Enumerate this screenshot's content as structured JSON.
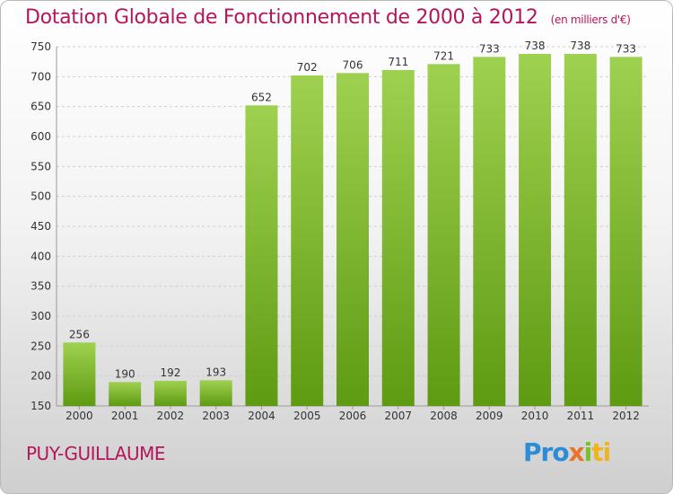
{
  "title": "Dotation Globale de Fonctionnement de 2000 à 2012",
  "unit_note": "(en milliers d'€)",
  "commune": "PUY-GUILLAUME",
  "logo": {
    "text": "Proxiti",
    "parts": [
      "Pro",
      "x",
      "i",
      "ti"
    ]
  },
  "colors": {
    "title": "#b5155b",
    "bar_top": "#9fd150",
    "bar_bottom": "#5e9a12",
    "grid": "#cfcfcf"
  },
  "chart_data": {
    "type": "bar",
    "title": "Dotation Globale de Fonctionnement de 2000 à 2012",
    "subtitle": "(en milliers d'€)",
    "xlabel": "",
    "ylabel": "",
    "categories": [
      "2000",
      "2001",
      "2002",
      "2003",
      "2004",
      "2005",
      "2006",
      "2007",
      "2008",
      "2009",
      "2010",
      "2011",
      "2012"
    ],
    "values": [
      256,
      190,
      192,
      193,
      652,
      702,
      706,
      711,
      721,
      733,
      738,
      738,
      733
    ],
    "ylim": [
      150,
      750
    ],
    "yticks": [
      150,
      200,
      250,
      300,
      350,
      400,
      450,
      500,
      550,
      600,
      650,
      700,
      750
    ],
    "grid": "horizontal dashed",
    "legend": "none",
    "data_labels": true
  }
}
